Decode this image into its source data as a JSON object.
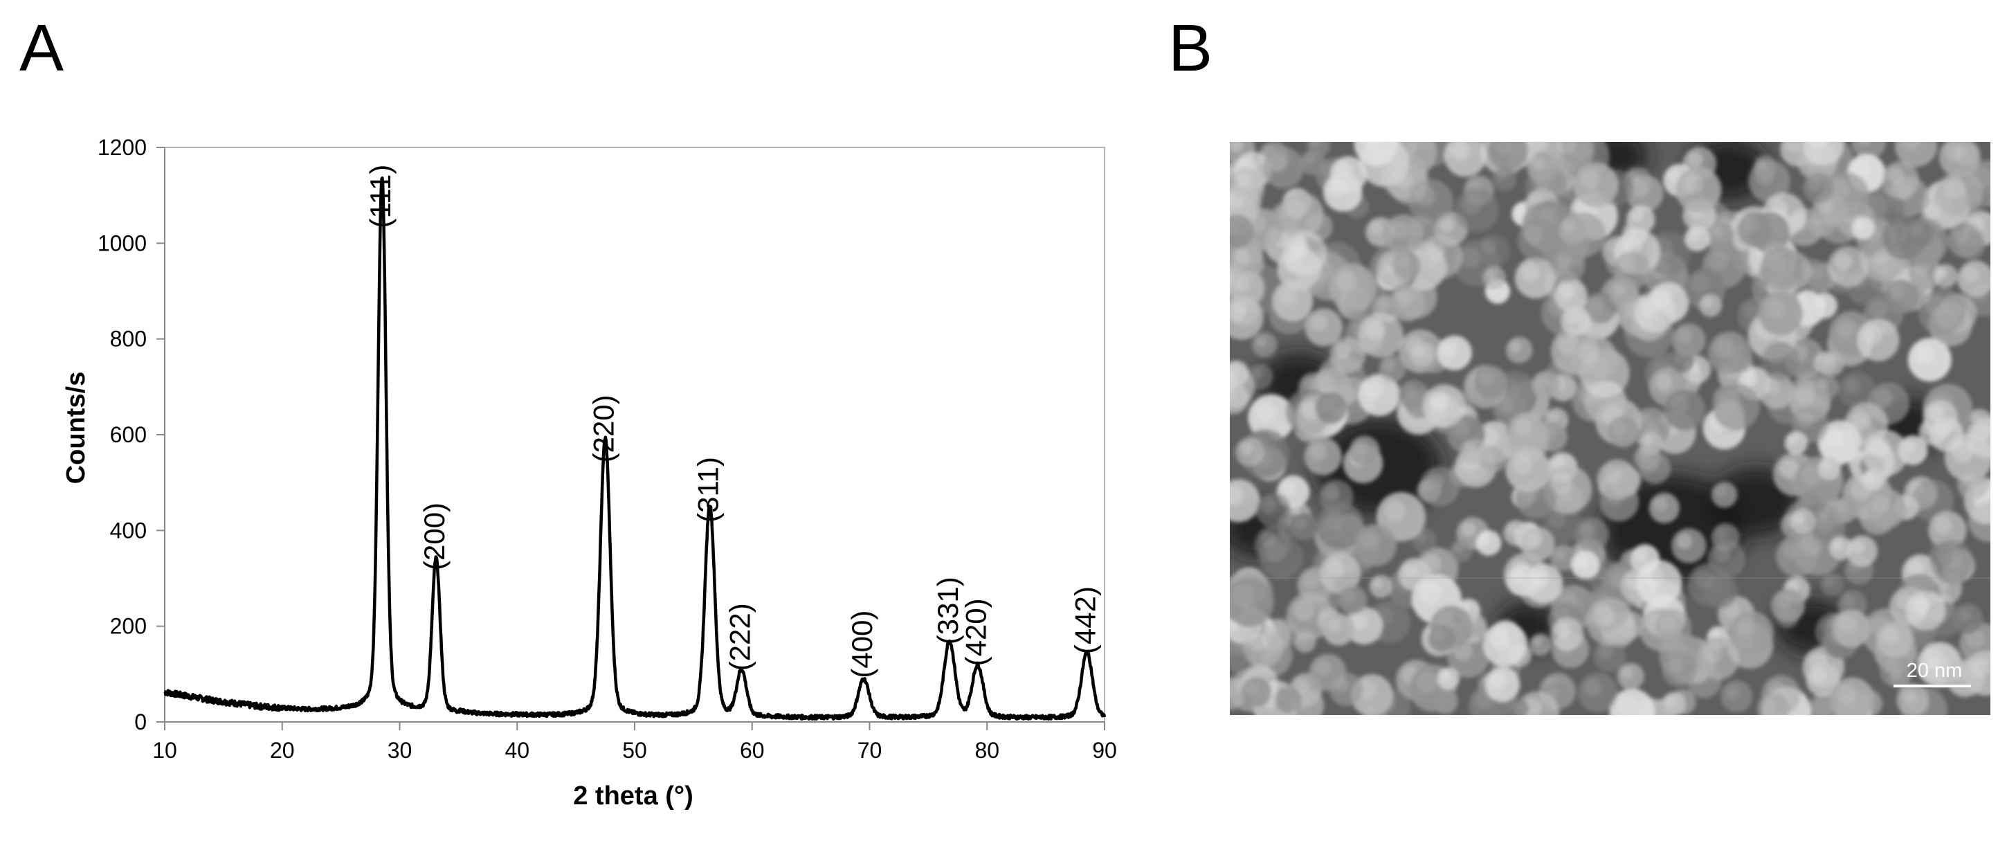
{
  "panels": {
    "left_label": "A",
    "right_label": "B"
  },
  "chart_data": {
    "type": "line",
    "title": "",
    "xlabel": "2 theta (°)",
    "ylabel": "Counts/s",
    "xlim": [
      10,
      90
    ],
    "ylim": [
      0,
      1200
    ],
    "xticks": [
      10,
      20,
      30,
      40,
      50,
      60,
      70,
      80,
      90
    ],
    "yticks": [
      0,
      200,
      400,
      600,
      800,
      1000,
      1200
    ],
    "grid": false,
    "legend": "none",
    "line_color": "#000000",
    "peaks": [
      {
        "x": 28.5,
        "y": 1020,
        "label": "(111)"
      },
      {
        "x": 33.1,
        "y": 305,
        "label": "(200)"
      },
      {
        "x": 47.5,
        "y": 530,
        "label": "(220)"
      },
      {
        "x": 56.4,
        "y": 405,
        "label": "(311)"
      },
      {
        "x": 59.1,
        "y": 95,
        "label": "(222)"
      },
      {
        "x": 69.5,
        "y": 80,
        "label": "(400)"
      },
      {
        "x": 76.8,
        "y": 150,
        "label": "(331)"
      },
      {
        "x": 79.2,
        "y": 105,
        "label": "(420)"
      },
      {
        "x": 88.5,
        "y": 130,
        "label": "(442)"
      }
    ],
    "baseline": [
      {
        "x": 10,
        "y": 62
      },
      {
        "x": 14,
        "y": 45
      },
      {
        "x": 18,
        "y": 32
      },
      {
        "x": 22,
        "y": 25
      },
      {
        "x": 26,
        "y": 25
      },
      {
        "x": 30,
        "y": 22
      },
      {
        "x": 36,
        "y": 15
      },
      {
        "x": 44,
        "y": 12
      },
      {
        "x": 54,
        "y": 10
      },
      {
        "x": 66,
        "y": 8
      },
      {
        "x": 78,
        "y": 8
      },
      {
        "x": 90,
        "y": 8
      }
    ]
  },
  "sem_image": {
    "scale_bar_label": "20 nm"
  }
}
